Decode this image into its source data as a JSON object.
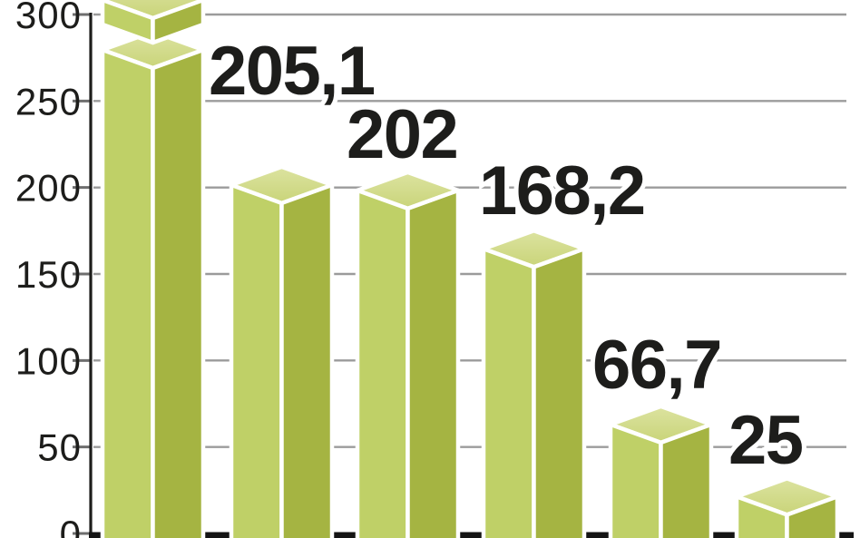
{
  "chart_data": {
    "type": "bar",
    "variant": "3d-column-infographic",
    "title": "",
    "xlabel": "",
    "ylabel": "",
    "decimal_separator": ",",
    "y_axis": {
      "min": 0,
      "max": 300,
      "tick_interval": 50,
      "ticks": [
        {
          "value": 300,
          "label": "300"
        },
        {
          "value": 250,
          "label": "250"
        },
        {
          "value": 200,
          "label": "200"
        },
        {
          "value": 150,
          "label": "150"
        },
        {
          "value": 100,
          "label": "100"
        },
        {
          "value": 50,
          "label": "50"
        },
        {
          "value": 0,
          "label": "0"
        }
      ]
    },
    "grid": true,
    "legend": false,
    "bars": [
      {
        "name": "bar-1",
        "value": null,
        "value_label": "",
        "broken_above_axis_max": true
      },
      {
        "name": "bar-2",
        "value": 205.1,
        "value_label": "205,1",
        "broken_above_axis_max": false
      },
      {
        "name": "bar-3",
        "value": 202,
        "value_label": "202",
        "broken_above_axis_max": false
      },
      {
        "name": "bar-4",
        "value": 168.2,
        "value_label": "168,2",
        "broken_above_axis_max": false
      },
      {
        "name": "bar-5",
        "value": 66.7,
        "value_label": "66,7",
        "broken_above_axis_max": false
      },
      {
        "name": "bar-6",
        "value": 25,
        "value_label": "25",
        "broken_above_axis_max": false
      }
    ],
    "colors": {
      "bar_front": "#bfd067",
      "bar_side": "#a5b442",
      "bar_top_light": "#dce3a0",
      "bar_top_dark": "#c9d479",
      "face_edge": "#ffffff",
      "gridline": "#9b9b9b",
      "tick": "#6e6e6e",
      "axis": "#1d1d1b",
      "baseline": "#141414",
      "label_text": "#1d1d1b",
      "background": "#ffffff"
    }
  }
}
